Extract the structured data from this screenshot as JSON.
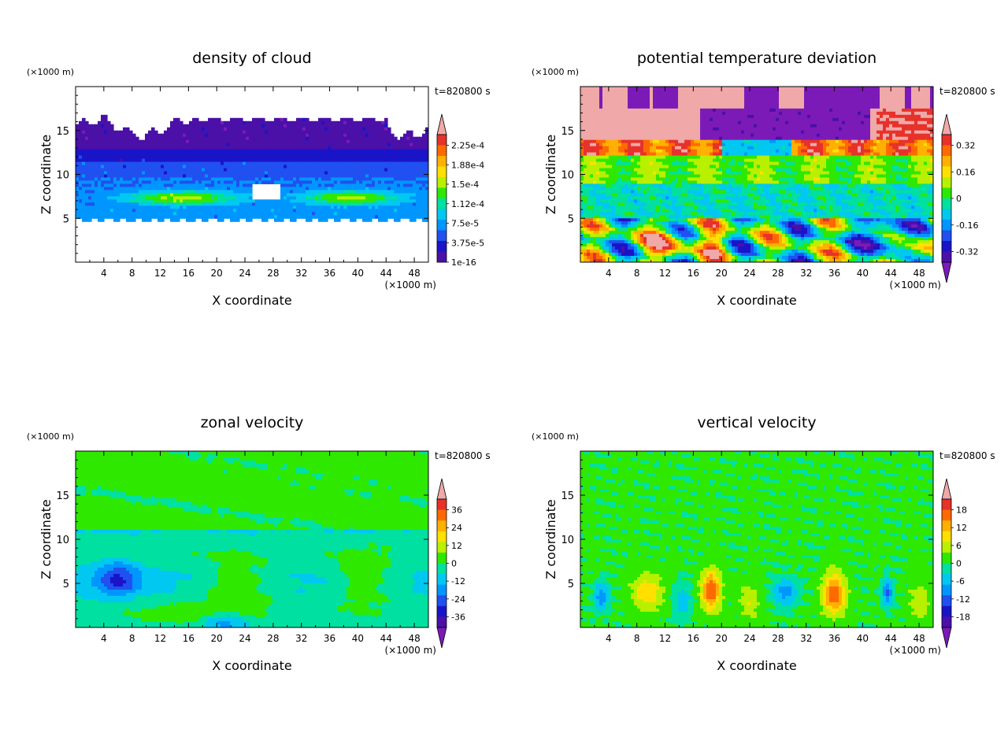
{
  "figure": {
    "time_label": "t=820800 s"
  },
  "chart_data": [
    {
      "type": "heatmap",
      "title": "density of cloud",
      "xlabel": "X coordinate",
      "ylabel": "Z coordinate",
      "x_unit": "(×1000 m)",
      "y_unit": "(×1000 m)",
      "time_label": "t=820800 s",
      "xlim": [
        0,
        50
      ],
      "ylim": [
        0,
        20
      ],
      "x_ticks": [
        "4",
        "8",
        "12",
        "16",
        "20",
        "24",
        "28",
        "32",
        "36",
        "40",
        "44",
        "48"
      ],
      "y_ticks": [
        "5",
        "10",
        "15"
      ],
      "colorbar": {
        "labels": [
          "2.25e-4",
          "1.88e-4",
          "1.5e-4",
          "1.12e-4",
          "7.5e-5",
          "3.75e-5",
          "1e-16"
        ],
        "colors": [
          "#f0a8a8",
          "#e6322a",
          "#ff6a00",
          "#ffb000",
          "#ffe000",
          "#b8f000",
          "#2ee800",
          "#00e0a0",
          "#00c8f0",
          "#0096ff",
          "#2050f0",
          "#1a14c8",
          "#4a10a8",
          "#7c1ab8"
        ],
        "triangle_top": true,
        "triangle_bottom": false
      },
      "field": "cloud"
    },
    {
      "type": "heatmap",
      "title": "potential temperature deviation",
      "xlabel": "X coordinate",
      "ylabel": "Z coordinate",
      "x_unit": "(×1000 m)",
      "y_unit": "(×1000 m)",
      "time_label": "t=820800 s",
      "xlim": [
        0,
        50
      ],
      "ylim": [
        0,
        20
      ],
      "x_ticks": [
        "4",
        "8",
        "12",
        "16",
        "20",
        "24",
        "28",
        "32",
        "36",
        "40",
        "44",
        "48"
      ],
      "y_ticks": [
        "5",
        "10",
        "15"
      ],
      "colorbar": {
        "labels": [
          "0.32",
          "0.16",
          "0",
          "-0.16",
          "-0.32"
        ],
        "colors": [
          "#f0a8a8",
          "#e6322a",
          "#ff6a00",
          "#ffb000",
          "#ffe000",
          "#b8f000",
          "#2ee800",
          "#00e0a0",
          "#00c8f0",
          "#0096ff",
          "#2050f0",
          "#1a14c8",
          "#4a10a8",
          "#7c1ab8"
        ],
        "triangle_top": true,
        "triangle_bottom": true
      },
      "field": "theta"
    },
    {
      "type": "heatmap",
      "title": "zonal velocity",
      "xlabel": "X coordinate",
      "ylabel": "Z coordinate",
      "x_unit": "(×1000 m)",
      "y_unit": "(×1000 m)",
      "time_label": "t=820800 s",
      "xlim": [
        0,
        50
      ],
      "ylim": [
        0,
        20
      ],
      "x_ticks": [
        "4",
        "8",
        "12",
        "16",
        "20",
        "24",
        "28",
        "32",
        "36",
        "40",
        "44",
        "48"
      ],
      "y_ticks": [
        "5",
        "10",
        "15"
      ],
      "colorbar": {
        "labels": [
          "36",
          "24",
          "12",
          "0",
          "-12",
          "-24",
          "-36"
        ],
        "colors": [
          "#f0a8a8",
          "#e6322a",
          "#ff6a00",
          "#ffb000",
          "#ffe000",
          "#b8f000",
          "#2ee800",
          "#00e0a0",
          "#00c8f0",
          "#0096ff",
          "#2050f0",
          "#1a14c8",
          "#4a10a8",
          "#7c1ab8"
        ],
        "triangle_top": true,
        "triangle_bottom": true
      },
      "field": "u"
    },
    {
      "type": "heatmap",
      "title": "vertical velocity",
      "xlabel": "X coordinate",
      "ylabel": "Z coordinate",
      "x_unit": "(×1000 m)",
      "y_unit": "(×1000 m)",
      "time_label": "t=820800 s",
      "xlim": [
        0,
        50
      ],
      "ylim": [
        0,
        20
      ],
      "x_ticks": [
        "4",
        "8",
        "12",
        "16",
        "20",
        "24",
        "28",
        "32",
        "36",
        "40",
        "44",
        "48"
      ],
      "y_ticks": [
        "5",
        "10",
        "15"
      ],
      "colorbar": {
        "labels": [
          "18",
          "12",
          "6",
          "0",
          "-6",
          "-12",
          "-18"
        ],
        "colors": [
          "#f0a8a8",
          "#e6322a",
          "#ff6a00",
          "#ffb000",
          "#ffe000",
          "#b8f000",
          "#2ee800",
          "#00e0a0",
          "#00c8f0",
          "#0096ff",
          "#2050f0",
          "#1a14c8",
          "#4a10a8",
          "#7c1ab8"
        ],
        "triangle_top": true,
        "triangle_bottom": true
      },
      "field": "w"
    }
  ]
}
